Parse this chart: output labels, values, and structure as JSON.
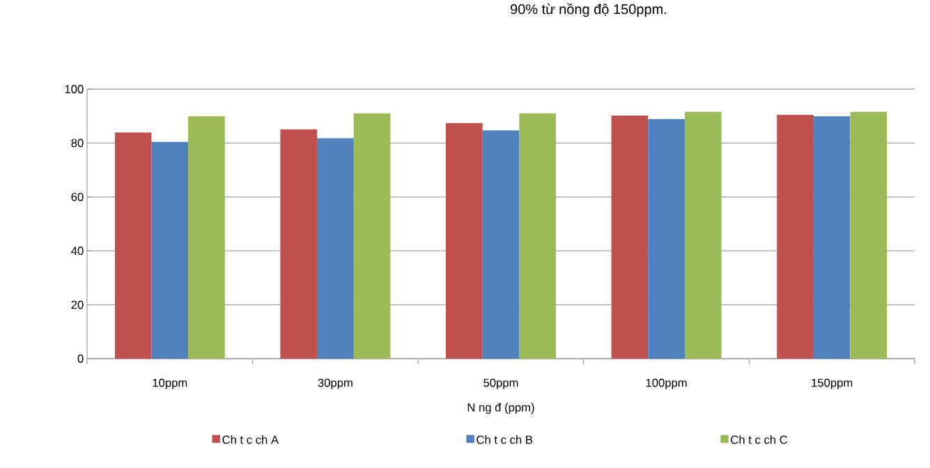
{
  "chart_data": {
    "type": "bar",
    "title": "90% từ nồng độ 150ppm.",
    "xlabel": "N ng đ  (ppm)",
    "categories": [
      "10ppm",
      "30ppm",
      "50ppm",
      "100ppm",
      "150ppm"
    ],
    "series": [
      {
        "name": "Ch t  c ch  A",
        "color": "#c0504d",
        "values": [
          83.9,
          85.1,
          87.4,
          90.2,
          90.5
        ]
      },
      {
        "name": "Ch t  c ch  B",
        "color": "#4f81bd",
        "values": [
          80.4,
          81.8,
          84.7,
          88.9,
          89.9
        ]
      },
      {
        "name": "Ch t  c ch  C",
        "color": "#9bbb59",
        "values": [
          89.9,
          91.0,
          91.0,
          91.6,
          91.6
        ]
      }
    ],
    "ylim": [
      0,
      100
    ],
    "yticks": [
      0,
      20,
      40,
      60,
      80,
      100
    ],
    "grid": "y",
    "legend": "bottom"
  }
}
